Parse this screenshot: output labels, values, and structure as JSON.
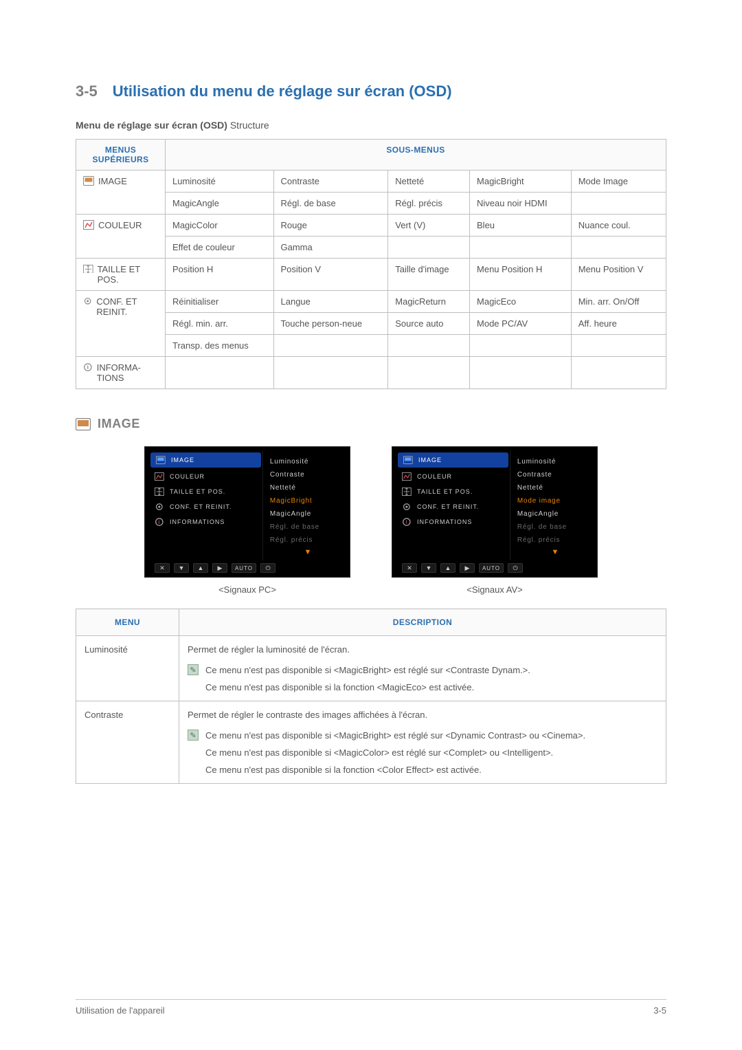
{
  "heading": {
    "number": "3-5",
    "title": "Utilisation du menu de réglage sur écran (OSD)"
  },
  "subheading": {
    "bold": "Menu de réglage sur écran (OSD)",
    "light": " Structure"
  },
  "structTable": {
    "header_menus": "MENUS SUPÉRIEURS",
    "header_submenus": "SOUS-MENUS",
    "menus": [
      "IMAGE",
      "COULEUR",
      "TAILLE ET POS.",
      "CONF. ET REINIT.",
      "INFORMA-TIONS"
    ],
    "rows": [
      [
        "Luminosité",
        "Contraste",
        "Netteté",
        "MagicBright",
        "Mode Image"
      ],
      [
        "MagicAngle",
        "Régl. de base",
        "Régl. précis",
        "Niveau noir HDMI",
        ""
      ],
      [
        "MagicColor",
        "Rouge",
        "Vert (V)",
        "Bleu",
        "Nuance coul."
      ],
      [
        "Effet de couleur",
        "Gamma",
        "",
        "",
        ""
      ],
      [
        "Position H",
        "Position V",
        "Taille d'image",
        "Menu Position H",
        "Menu Position V"
      ],
      [
        "Réinitialiser",
        "Langue",
        "MagicReturn",
        "MagicEco",
        "Min. arr. On/Off"
      ],
      [
        "Régl. min. arr.",
        "Touche person-neue",
        "Source auto",
        "Mode PC/AV",
        "Aff. heure"
      ],
      [
        "Transp. des menus",
        "",
        "",
        "",
        ""
      ],
      [
        "",
        "",
        "",
        "",
        ""
      ]
    ],
    "menu_rowspan": [
      2,
      2,
      1,
      3,
      1
    ]
  },
  "imageSection": {
    "title": "IMAGE"
  },
  "osd": {
    "tabs": [
      "IMAGE",
      "COULEUR",
      "TAILLE ET POS.",
      "CONF. ET REINIT.",
      "INFORMATIONS"
    ],
    "pc_items": [
      {
        "label": "Luminosité",
        "state": "normal"
      },
      {
        "label": "Contraste",
        "state": "normal"
      },
      {
        "label": "Netteté",
        "state": "normal"
      },
      {
        "label": "MagicBright",
        "state": "highlight"
      },
      {
        "label": "MagicAngle",
        "state": "normal"
      },
      {
        "label": "Régl. de base",
        "state": "dim"
      },
      {
        "label": "Régl. précis",
        "state": "dim"
      }
    ],
    "av_items": [
      {
        "label": "Luminosité",
        "state": "normal"
      },
      {
        "label": "Contraste",
        "state": "normal"
      },
      {
        "label": "Netteté",
        "state": "normal"
      },
      {
        "label": "Mode image",
        "state": "highlight"
      },
      {
        "label": "MagicAngle",
        "state": "normal"
      },
      {
        "label": "Régl. de base",
        "state": "dim"
      },
      {
        "label": "Régl. précis",
        "state": "dim"
      }
    ],
    "caption_pc": "<Signaux PC>",
    "caption_av": "<Signaux AV>",
    "buttons": [
      "✕",
      "▼",
      "▲",
      "▶",
      "AUTO",
      "⏻"
    ]
  },
  "descTable": {
    "header_menu": "MENU",
    "header_desc": "DESCRIPTION",
    "rows": [
      {
        "menu": "Luminosité",
        "desc_main": "Permet de régler la luminosité de l'écran.",
        "notes": [
          "Ce menu n'est pas disponible si <MagicBright> est réglé sur <Contraste Dynam.>.",
          "Ce menu n'est pas disponible si la fonction <MagicEco> est activée."
        ]
      },
      {
        "menu": "Contraste",
        "desc_main": "Permet de régler le contraste des images affichées à l'écran.",
        "notes": [
          "Ce menu n'est pas disponible si <MagicBright> est réglé sur <Dynamic Contrast> ou <Cinema>.",
          "Ce menu n'est pas disponible si <MagicColor> est réglé sur <Complet> ou <Intelligent>.",
          "Ce menu n'est pas disponible si la fonction <Color Effect> est activée."
        ]
      }
    ]
  },
  "footer": {
    "left": "Utilisation de l'appareil",
    "right": "3-5"
  },
  "colors": {
    "accent": "#2a6fb0",
    "gray": "#808080",
    "text": "#555555",
    "border": "#bfbfbf",
    "osd_highlight": "#e88300",
    "osd_tab_bg": "#1341a0"
  }
}
